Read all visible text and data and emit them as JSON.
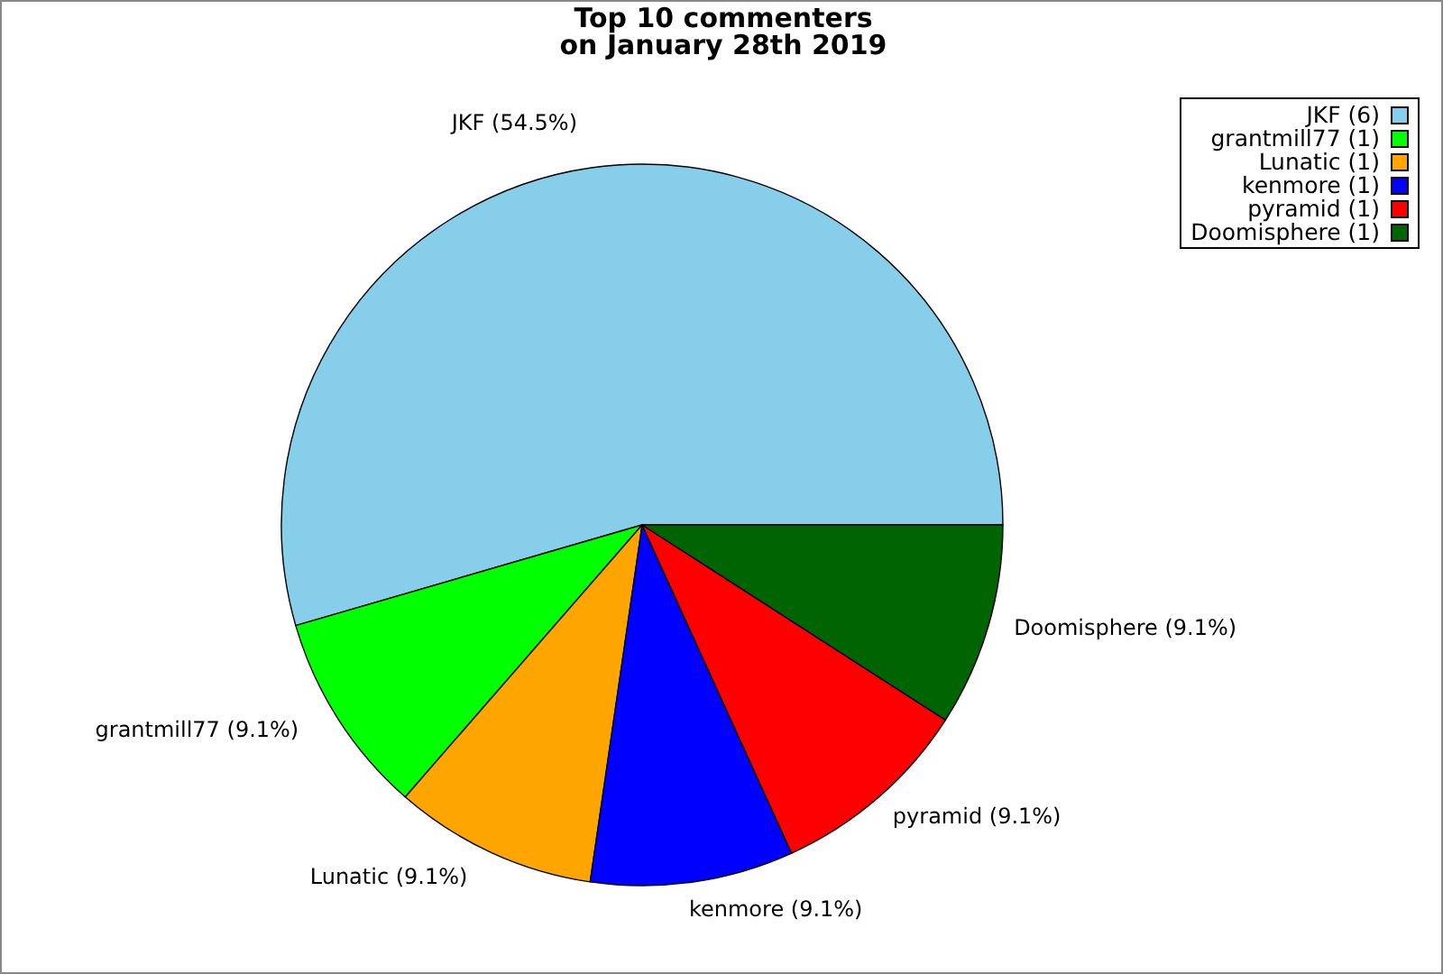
{
  "chart_data": {
    "type": "pie",
    "title": "Top 10 commenters\non January 28th 2019",
    "categories": [
      "JKF (6)",
      "grantmill77 (1)",
      "Lunatic (1)",
      "kenmore (1)",
      "pyramid (1)",
      "Doomisphere (1)"
    ],
    "values": [
      54.5,
      9.1,
      9.1,
      9.1,
      9.1,
      9.1
    ],
    "annotations": [
      "JKF (54.5%)",
      "grantmill77 (9.1%)",
      "Lunatic (9.1%)",
      "kenmore (9.1%)",
      "pyramid (9.1%)",
      "Doomisphere (9.1%)"
    ],
    "colors": [
      "#87ceeb",
      "#00ff00",
      "#ffa500",
      "#0000ff",
      "#ff0000",
      "#006400"
    ],
    "legend": "top right"
  }
}
